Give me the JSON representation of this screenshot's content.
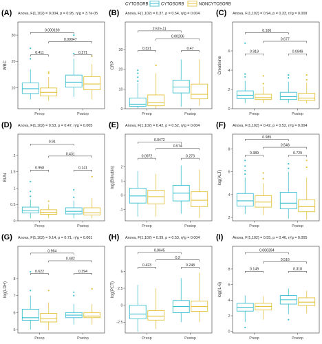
{
  "legend": {
    "title": "CYTOSORB",
    "items": [
      {
        "label": "CYTOSORB",
        "color": "#3cbfcf"
      },
      {
        "label": "NONCYTOSORB",
        "color": "#e3c23d"
      }
    ]
  },
  "chart_data": [
    {
      "type": "box",
      "panel": "(A)",
      "ylabel": "WBC",
      "anova": "Anova, F(1,102) = 0.004, p = 0.95, η²g = 3.7e-05",
      "categories": [
        "Preop",
        "Postop"
      ],
      "ylim": [
        2,
        35
      ],
      "yticks": [
        10,
        20,
        30
      ],
      "series": [
        {
          "name": "CYTOSORB",
          "boxes": [
            {
              "lo": 5.5,
              "q1": 7.8,
              "med": 9.6,
              "q3": 11.8,
              "hi": 17,
              "outliers": [
                21,
                25
              ]
            },
            {
              "lo": 6.5,
              "q1": 10.2,
              "med": 12.1,
              "q3": 14.8,
              "hi": 21,
              "outliers": [
                23,
                30
              ]
            }
          ]
        },
        {
          "name": "NONCYTOSORB",
          "boxes": [
            {
              "lo": 5,
              "q1": 6.9,
              "med": 8.2,
              "q3": 9.9,
              "hi": 14,
              "outliers": [
                15.5,
                16
              ]
            },
            {
              "lo": 5.5,
              "q1": 9.2,
              "med": 11.4,
              "q3": 14.2,
              "hi": 19,
              "outliers": [
                22
              ]
            }
          ]
        }
      ],
      "comparisons": [
        {
          "text": "0.000189",
          "g1": 0,
          "g2": 2,
          "y": 31
        },
        {
          "text": "0.00047",
          "g1": 1,
          "g2": 3,
          "y": 27.5
        },
        {
          "text": "0.411",
          "g1": 0,
          "g2": 1,
          "y": 22.5
        },
        {
          "text": "0.271",
          "g1": 2,
          "g2": 3,
          "y": 22.5
        }
      ]
    },
    {
      "type": "box",
      "panel": "(B)",
      "ylabel": "CRP",
      "anova": "Anova, F(1,102) = 0.37, p = 0.54, η²g = 0.004",
      "categories": [
        "Preop",
        "Postop"
      ],
      "ylim": [
        0,
        44
      ],
      "yticks": [
        0,
        10,
        20,
        30
      ],
      "series": [
        {
          "name": "CYTOSORB",
          "boxes": [
            {
              "lo": 0.2,
              "q1": 1.2,
              "med": 2.3,
              "q3": 5.4,
              "hi": 13,
              "outliers": [
                14,
                16,
                18,
                19.5
              ]
            },
            {
              "lo": 1,
              "q1": 8,
              "med": 11,
              "q3": 14.5,
              "hi": 25,
              "outliers": []
            }
          ]
        },
        {
          "name": "NONCYTOSORB",
          "boxes": [
            {
              "lo": 0.2,
              "q1": 1.5,
              "med": 3,
              "q3": 7,
              "hi": 18,
              "outliers": [
                22
              ]
            },
            {
              "lo": 1.5,
              "q1": 5,
              "med": 7.3,
              "q3": 12.5,
              "hi": 25,
              "outliers": []
            }
          ]
        }
      ],
      "comparisons": [
        {
          "text": "2.57e-11",
          "g1": 0,
          "g2": 2,
          "y": 39.5
        },
        {
          "text": "0.00206",
          "g1": 1,
          "g2": 3,
          "y": 35.5
        },
        {
          "text": "0.321",
          "g1": 0,
          "g2": 1,
          "y": 29.5
        },
        {
          "text": "0.47",
          "g1": 2,
          "g2": 3,
          "y": 29.5
        }
      ]
    },
    {
      "type": "box",
      "panel": "(C)",
      "ylabel": "Creatinine",
      "anova": "Anova, F(1,102) = 0.94, p = 0.33, η²g = 0.009",
      "categories": [
        "Preop",
        "Postop"
      ],
      "ylim": [
        0,
        9
      ],
      "yticks": [
        0,
        2,
        4,
        6
      ],
      "series": [
        {
          "name": "CYTOSORB",
          "boxes": [
            {
              "lo": 0.6,
              "q1": 1.05,
              "med": 1.4,
              "q3": 1.85,
              "hi": 2.9,
              "outliers": [
                3.3,
                3.6,
                6.8
              ]
            },
            {
              "lo": 0.6,
              "q1": 0.95,
              "med": 1.25,
              "q3": 1.7,
              "hi": 2.8,
              "outliers": [
                3.2,
                3.5
              ]
            }
          ]
        },
        {
          "name": "NONCYTOSORB",
          "boxes": [
            {
              "lo": 0.6,
              "q1": 0.95,
              "med": 1.15,
              "q3": 1.5,
              "hi": 2.3,
              "outliers": [
                2.6,
                3.4
              ]
            },
            {
              "lo": 0.55,
              "q1": 0.85,
              "med": 1.1,
              "q3": 1.6,
              "hi": 2.7,
              "outliers": [
                3,
                3.5
              ]
            }
          ]
        }
      ],
      "comparisons": [
        {
          "text": "0.106",
          "g1": 0,
          "g2": 2,
          "y": 7.9
        },
        {
          "text": "0.677",
          "g1": 1,
          "g2": 3,
          "y": 7
        },
        {
          "text": "0.919",
          "g1": 0,
          "g2": 1,
          "y": 5.7
        },
        {
          "text": "0.0949",
          "g1": 2,
          "g2": 3,
          "y": 5.7
        }
      ]
    },
    {
      "type": "box",
      "panel": "(D)",
      "ylabel": "BUN",
      "anova": "Anova, F(1,102) = 0.53, p = 0.47, η²g = 0.005",
      "categories": [
        "Preop",
        "Postop"
      ],
      "ylim": [
        0,
        2.65
      ],
      "yticks": [
        0,
        0.5,
        1,
        1.5,
        2
      ],
      "series": [
        {
          "name": "CYTOSORB",
          "boxes": [
            {
              "lo": 0.08,
              "q1": 0.24,
              "med": 0.31,
              "q3": 0.42,
              "hi": 0.65,
              "outliers": [
                0.75,
                0.9,
                1.2
              ]
            },
            {
              "lo": 0.08,
              "q1": 0.21,
              "med": 0.29,
              "q3": 0.4,
              "hi": 0.62,
              "outliers": [
                0.72,
                0.95
              ]
            }
          ]
        },
        {
          "name": "NONCYTOSORB",
          "boxes": [
            {
              "lo": 0.08,
              "q1": 0.2,
              "med": 0.26,
              "q3": 0.34,
              "hi": 0.5,
              "outliers": [
                0.6
              ]
            },
            {
              "lo": 0.08,
              "q1": 0.18,
              "med": 0.25,
              "q3": 0.4,
              "hi": 0.7,
              "outliers": [
                1.35
              ]
            }
          ]
        }
      ],
      "comparisons": [
        {
          "text": "0.91",
          "g1": 0,
          "g2": 2,
          "y": 2.35
        },
        {
          "text": "0.431",
          "g1": 1,
          "g2": 3,
          "y": 1.98
        },
        {
          "text": "0.958",
          "g1": 0,
          "g2": 1,
          "y": 1.55
        },
        {
          "text": "0.141",
          "g1": 2,
          "g2": 3,
          "y": 1.55
        }
      ]
    },
    {
      "type": "box",
      "panel": "(E)",
      "ylabel": "log(Bilirubin)",
      "anova": "Anova, F(1,102) = 0.42, p = 0.52, η²g = 0.004",
      "categories": [
        "Preop",
        "Postop"
      ],
      "ylim": [
        -1.8,
        4.3
      ],
      "yticks": [
        -1,
        0,
        1,
        2
      ],
      "series": [
        {
          "name": "CYTOSORB",
          "boxes": [
            {
              "lo": -1.5,
              "q1": -0.55,
              "med": -0.05,
              "q3": 0.5,
              "hi": 1.7,
              "outliers": []
            },
            {
              "lo": -1.3,
              "q1": -0.4,
              "med": 0.15,
              "q3": 0.7,
              "hi": 2.1,
              "outliers": []
            }
          ]
        },
        {
          "name": "NONCYTOSORB",
          "boxes": [
            {
              "lo": -1.5,
              "q1": -0.6,
              "med": -0.1,
              "q3": 0.35,
              "hi": 1.5,
              "outliers": []
            },
            {
              "lo": -1.6,
              "q1": -0.8,
              "med": -0.35,
              "q3": 0.25,
              "hi": 1.8,
              "outliers": []
            }
          ]
        }
      ],
      "comparisons": [
        {
          "text": "0.0472",
          "g1": 0,
          "g2": 2,
          "y": 3.75
        },
        {
          "text": "0.574",
          "g1": 1,
          "g2": 3,
          "y": 3.3
        },
        {
          "text": "0.0972",
          "g1": 0,
          "g2": 1,
          "y": 2.6
        },
        {
          "text": "0.273",
          "g1": 2,
          "g2": 3,
          "y": 2.6
        }
      ]
    },
    {
      "type": "box",
      "panel": "(F)",
      "ylabel": "log(ALT)",
      "anova": "Anova, F(1,102) = 0.42, p = 0.52, η²g = 0.004",
      "categories": [
        "Preop",
        "Postop"
      ],
      "ylim": [
        1.7,
        9.3
      ],
      "yticks": [
        2,
        4,
        6,
        8
      ],
      "series": [
        {
          "name": "CYTOSORB",
          "boxes": [
            {
              "lo": 2.3,
              "q1": 3,
              "med": 3.45,
              "q3": 4.1,
              "hi": 5.5,
              "outliers": [
                5.8,
                6.1,
                6.5,
                7
              ]
            },
            {
              "lo": 1.9,
              "q1": 2.75,
              "med": 3.25,
              "q3": 4.2,
              "hi": 6,
              "outliers": [
                6.3,
                6.7
              ]
            }
          ]
        },
        {
          "name": "NONCYTOSORB",
          "boxes": [
            {
              "lo": 2.2,
              "q1": 2.9,
              "med": 3.35,
              "q3": 3.9,
              "hi": 5,
              "outliers": [
                5.4,
                5.9
              ]
            },
            {
              "lo": 1.8,
              "q1": 2.5,
              "med": 2.95,
              "q3": 3.55,
              "hi": 5.5,
              "outliers": [
                6.4,
                7
              ]
            }
          ]
        }
      ],
      "comparisons": [
        {
          "text": "0.985",
          "g1": 0,
          "g2": 2,
          "y": 8.85
        },
        {
          "text": "0.548",
          "g1": 1,
          "g2": 3,
          "y": 8.15
        },
        {
          "text": "0.389",
          "g1": 0,
          "g2": 1,
          "y": 7.45
        },
        {
          "text": "0.729",
          "g1": 2,
          "g2": 3,
          "y": 7.45
        }
      ]
    },
    {
      "type": "box",
      "panel": "(G)",
      "ylabel": "log(LDH)",
      "anova": "Anova, F(1,102) = 0.14, p = 0.71, η²g = 0.001",
      "categories": [
        "Preop",
        "Postop"
      ],
      "ylim": [
        4.8,
        9.9
      ],
      "yticks": [
        5,
        6,
        7,
        8
      ],
      "series": [
        {
          "name": "CYTOSORB",
          "boxes": [
            {
              "lo": 5,
              "q1": 5.55,
              "med": 5.7,
              "q3": 6.2,
              "hi": 7,
              "outliers": [
                7.3,
                8.4
              ]
            },
            {
              "lo": 5.3,
              "q1": 5.7,
              "med": 5.85,
              "q3": 6,
              "hi": 6.5,
              "outliers": [
                7,
                7.2
              ]
            }
          ]
        },
        {
          "name": "NONCYTOSORB",
          "boxes": [
            {
              "lo": 4.95,
              "q1": 5.45,
              "med": 5.65,
              "q3": 5.95,
              "hi": 6.6,
              "outliers": [
                7.3
              ]
            },
            {
              "lo": 5.3,
              "q1": 5.7,
              "med": 5.8,
              "q3": 6,
              "hi": 6.5,
              "outliers": [
                7.4
              ]
            }
          ]
        }
      ],
      "comparisons": [
        {
          "text": "0.964",
          "g1": 0,
          "g2": 2,
          "y": 9.5
        },
        {
          "text": "0.482",
          "g1": 1,
          "g2": 3,
          "y": 9.05
        },
        {
          "text": "0.622",
          "g1": 0,
          "g2": 1,
          "y": 8.3
        },
        {
          "text": "0.394",
          "g1": 2,
          "g2": 3,
          "y": 8.3
        }
      ]
    },
    {
      "type": "box",
      "panel": "(H)",
      "ylabel": "log(PCT)",
      "anova": "Anova, F(1,102) = 0.39, p = 0.53, η²g = 0.004",
      "categories": [
        "Preop",
        "Postop"
      ],
      "ylim": [
        -4.1,
        8.7
      ],
      "yticks": [
        -2.5,
        0,
        2.5,
        5
      ],
      "series": [
        {
          "name": "CYTOSORB",
          "boxes": [
            {
              "lo": -3.9,
              "q1": -2,
              "med": -1.3,
              "q3": 0,
              "hi": 3,
              "outliers": []
            },
            {
              "lo": -2.5,
              "q1": -1.1,
              "med": -0.2,
              "q3": 0.7,
              "hi": 4,
              "outliers": []
            }
          ]
        },
        {
          "name": "NONCYTOSORB",
          "boxes": [
            {
              "lo": -3.5,
              "q1": -2.2,
              "med": -1.6,
              "q3": -0.8,
              "hi": 2.5,
              "outliers": []
            },
            {
              "lo": -2.5,
              "q1": -0.9,
              "med": -0.2,
              "q3": 0.6,
              "hi": 4.8,
              "outliers": []
            }
          ]
        }
      ],
      "comparisons": [
        {
          "text": "0.0645",
          "g1": 0,
          "g2": 2,
          "y": 7.8
        },
        {
          "text": "0.2",
          "g1": 1,
          "g2": 3,
          "y": 6.7
        },
        {
          "text": "0.423",
          "g1": 0,
          "g2": 1,
          "y": 5.6
        },
        {
          "text": "0.248",
          "g1": 2,
          "g2": 3,
          "y": 5.6
        }
      ]
    },
    {
      "type": "box",
      "panel": "(I)",
      "ylabel": "log(IL-6)",
      "anova": "Anova, F(1,102) = 0.55, p = 0.46, η²g = 0.005",
      "categories": [
        "Preop",
        "Postop"
      ],
      "ylim": [
        -0.2,
        10.9
      ],
      "yticks": [
        0,
        2,
        4,
        6,
        8
      ],
      "series": [
        {
          "name": "CYTOSORB",
          "boxes": [
            {
              "lo": 1.2,
              "q1": 2.6,
              "med": 3.1,
              "q3": 3.6,
              "hi": 4.6,
              "outliers": [
                0.5
              ]
            },
            {
              "lo": 2.2,
              "q1": 3.5,
              "med": 4.05,
              "q3": 4.6,
              "hi": 5.5,
              "outliers": [
                1.5
              ]
            }
          ]
        },
        {
          "name": "NONCYTOSORB",
          "boxes": [
            {
              "lo": 1.5,
              "q1": 2.75,
              "med": 3.2,
              "q3": 3.6,
              "hi": 4.5,
              "outliers": []
            },
            {
              "lo": 2.3,
              "q1": 3.3,
              "med": 3.75,
              "q3": 4.3,
              "hi": 5.2,
              "outliers": []
            }
          ]
        }
      ],
      "comparisons": [
        {
          "text": "0.000394",
          "g1": 0,
          "g2": 2,
          "y": 10.1
        },
        {
          "text": "0.516",
          "g1": 1,
          "g2": 3,
          "y": 8.9
        },
        {
          "text": "0.149",
          "g1": 0,
          "g2": 1,
          "y": 7.7
        },
        {
          "text": "0.318",
          "g1": 2,
          "g2": 3,
          "y": 7.7
        }
      ]
    }
  ]
}
